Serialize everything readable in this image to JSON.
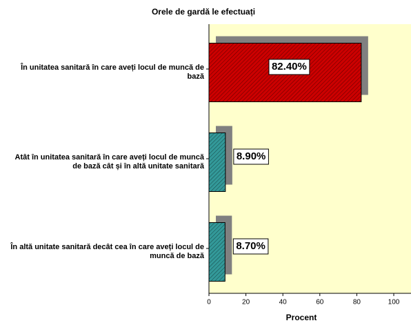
{
  "chart_data": {
    "type": "hbar",
    "title": "Orele de gardă le efectuați",
    "categories": [
      "În unitatea sanitară în care aveți locul de muncă de bază",
      "Atât în unitatea sanitară în care aveți locul de muncă de bază cât și în altă unitate sanitară",
      "În altă unitate sanitară decât cea în care aveți locul de muncă de bază"
    ],
    "values": [
      82.4,
      8.9,
      8.7
    ],
    "value_labels": [
      "82.40%",
      "8.90%",
      "8.70%"
    ],
    "colors": [
      "#cc0000",
      "#339999",
      "#339999"
    ],
    "xlabel": "Procent",
    "xlim": [
      0,
      109
    ],
    "xticks": [
      0,
      20,
      40,
      60,
      80,
      100
    ]
  }
}
